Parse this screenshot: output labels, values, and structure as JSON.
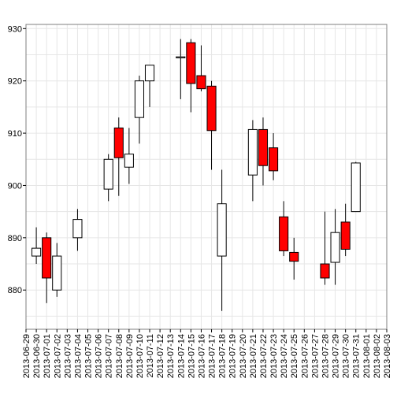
{
  "chart_data": {
    "type": "candlestick",
    "title": "",
    "xlabel": "",
    "ylabel": "",
    "x_ticks": [
      "2013-06-29",
      "2013-06-30",
      "2013-07-01",
      "2013-07-02",
      "2013-07-03",
      "2013-07-04",
      "2013-07-05",
      "2013-07-06",
      "2013-07-07",
      "2013-07-08",
      "2013-07-09",
      "2013-07-10",
      "2013-07-11",
      "2013-07-12",
      "2013-07-13",
      "2013-07-14",
      "2013-07-15",
      "2013-07-16",
      "2013-07-17",
      "2013-07-18",
      "2013-07-19",
      "2013-07-20",
      "2013-07-21",
      "2013-07-22",
      "2013-07-23",
      "2013-07-24",
      "2013-07-25",
      "2013-07-26",
      "2013-07-27",
      "2013-07-28",
      "2013-07-29",
      "2013-07-30",
      "2013-07-31",
      "2013-08-01",
      "2013-08-02",
      "2013-08-03"
    ],
    "y_ticks": [
      880,
      890,
      900,
      910,
      920,
      930
    ],
    "ylim": [
      872.5,
      930.8
    ],
    "grid": true,
    "colors": {
      "up": "#ffffff",
      "down": "#ff0000",
      "outline": "#000000",
      "grid": "#e6e6e6"
    },
    "candles": [
      {
        "date": "2013-06-30",
        "open": 886.5,
        "high": 892.0,
        "low": 885.0,
        "close": 888.0
      },
      {
        "date": "2013-07-01",
        "open": 890.0,
        "high": 891.0,
        "low": 877.5,
        "close": 882.3
      },
      {
        "date": "2013-07-02",
        "open": 880.0,
        "high": 889.0,
        "low": 878.7,
        "close": 886.5
      },
      {
        "date": "2013-07-04",
        "open": 890.0,
        "high": 895.5,
        "low": 887.5,
        "close": 893.5
      },
      {
        "date": "2013-07-07",
        "open": 899.3,
        "high": 906.0,
        "low": 897.0,
        "close": 905.0
      },
      {
        "date": "2013-07-08",
        "open": 911.0,
        "high": 913.0,
        "low": 898.0,
        "close": 905.3
      },
      {
        "date": "2013-07-09",
        "open": 903.5,
        "high": 911.0,
        "low": 900.3,
        "close": 906.0
      },
      {
        "date": "2013-07-10",
        "open": 913.0,
        "high": 921.0,
        "low": 908.0,
        "close": 920.0
      },
      {
        "date": "2013-07-11",
        "open": 920.0,
        "high": 923.0,
        "low": 915.0,
        "close": 923.0
      },
      {
        "date": "2013-07-14",
        "open": 924.4,
        "high": 928.0,
        "low": 916.5,
        "close": 924.6
      },
      {
        "date": "2013-07-15",
        "open": 927.3,
        "high": 928.0,
        "low": 914.0,
        "close": 919.5
      },
      {
        "date": "2013-07-16",
        "open": 921.0,
        "high": 926.8,
        "low": 918.0,
        "close": 918.5
      },
      {
        "date": "2013-07-17",
        "open": 919.0,
        "high": 920.0,
        "low": 903.0,
        "close": 910.5
      },
      {
        "date": "2013-07-18",
        "open": 886.5,
        "high": 903.0,
        "low": 876.0,
        "close": 896.5
      },
      {
        "date": "2013-07-21",
        "open": 902.0,
        "high": 912.5,
        "low": 897.0,
        "close": 910.7
      },
      {
        "date": "2013-07-22",
        "open": 910.7,
        "high": 913.0,
        "low": 900.0,
        "close": 903.8
      },
      {
        "date": "2013-07-23",
        "open": 907.2,
        "high": 910.0,
        "low": 901.0,
        "close": 902.8
      },
      {
        "date": "2013-07-24",
        "open": 894.0,
        "high": 897.0,
        "low": 886.5,
        "close": 887.5
      },
      {
        "date": "2013-07-25",
        "open": 887.2,
        "high": 890.0,
        "low": 882.0,
        "close": 885.5
      },
      {
        "date": "2013-07-28",
        "open": 885.0,
        "high": 895.0,
        "low": 881.0,
        "close": 882.3
      },
      {
        "date": "2013-07-29",
        "open": 885.3,
        "high": 895.5,
        "low": 881.0,
        "close": 891.0
      },
      {
        "date": "2013-07-30",
        "open": 893.0,
        "high": 896.5,
        "low": 886.5,
        "close": 887.8
      },
      {
        "date": "2013-07-31",
        "open": 895.0,
        "high": 904.5,
        "low": 895.0,
        "close": 904.3
      }
    ]
  }
}
